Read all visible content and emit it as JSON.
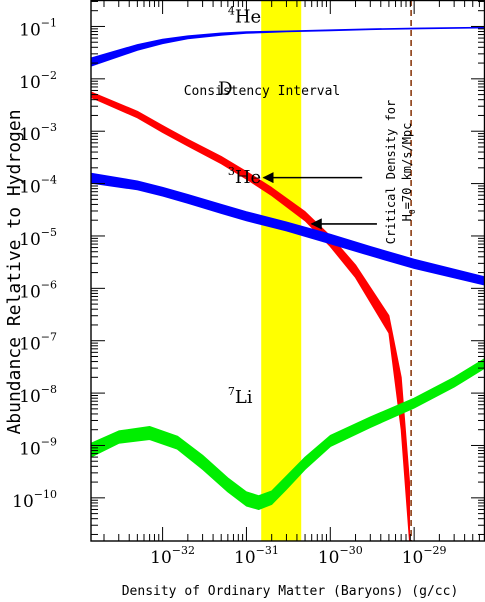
{
  "chart_data": {
    "type": "line",
    "xlabel": "Density of Ordinary Matter (Baryons) (g/cc)",
    "ylabel": "Abundance Relative to Hydrogen",
    "x_scale": "log",
    "y_scale": "log",
    "xlim": [
      1.4e-33,
      7e-29
    ],
    "ylim": [
      1.5e-11,
      0.32
    ],
    "x_ticks": [
      {
        "value": 1e-32,
        "base": "10",
        "exp": "−32"
      },
      {
        "value": 1e-31,
        "base": "10",
        "exp": "−31"
      },
      {
        "value": 1e-30,
        "base": "10",
        "exp": "−30"
      },
      {
        "value": 1e-29,
        "base": "10",
        "exp": "−29"
      }
    ],
    "y_ticks": [
      {
        "value": 1e-10,
        "base": "10",
        "exp": "−10"
      },
      {
        "value": 1e-09,
        "base": "10",
        "exp": "−9"
      },
      {
        "value": 1e-08,
        "base": "10",
        "exp": "−8"
      },
      {
        "value": 1e-07,
        "base": "10",
        "exp": "−7"
      },
      {
        "value": 1e-06,
        "base": "10",
        "exp": "−6"
      },
      {
        "value": 1e-05,
        "base": "10",
        "exp": "−5"
      },
      {
        "value": 0.0001,
        "base": "10",
        "exp": "−4"
      },
      {
        "value": 0.001,
        "base": "10",
        "exp": "−3"
      },
      {
        "value": 0.01,
        "base": "10",
        "exp": "−2"
      },
      {
        "value": 0.1,
        "base": "10",
        "exp": "−1"
      }
    ],
    "grid": false,
    "consistency_interval": {
      "label": "Consistency Interval",
      "x_range": [
        1.5e-31,
        4.5e-31
      ],
      "color": "#ffff00"
    },
    "critical_density": {
      "label_line1": "Critical Density for",
      "label_line2_base": "H",
      "label_line2_sub": "0",
      "label_line2_rest": "=70 km/s/Mpc",
      "x": 9.2e-30,
      "color": "#8b3a10"
    },
    "series": [
      {
        "name": "He",
        "mass_number": "4",
        "color": "#0000ff",
        "band": [
          {
            "x": 1.4e-33,
            "lo": 0.0175,
            "hi": 0.025
          },
          {
            "x": 5e-33,
            "lo": 0.035,
            "hi": 0.045
          },
          {
            "x": 1e-32,
            "lo": 0.047,
            "hi": 0.057
          },
          {
            "x": 2e-32,
            "lo": 0.058,
            "hi": 0.066
          },
          {
            "x": 5e-32,
            "lo": 0.068,
            "hi": 0.075
          },
          {
            "x": 1e-31,
            "lo": 0.074,
            "hi": 0.079
          },
          {
            "x": 3e-31,
            "lo": 0.079,
            "hi": 0.082
          },
          {
            "x": 1e-30,
            "lo": 0.083,
            "hi": 0.086
          },
          {
            "x": 3e-30,
            "lo": 0.087,
            "hi": 0.09
          },
          {
            "x": 1e-29,
            "lo": 0.09,
            "hi": 0.093
          },
          {
            "x": 7e-29,
            "lo": 0.094,
            "hi": 0.097
          }
        ]
      },
      {
        "name": "D",
        "mass_number": "",
        "color": "#ff0000",
        "band": [
          {
            "x": 1.4e-33,
            "lo": 0.0044,
            "hi": 0.0056
          },
          {
            "x": 5e-33,
            "lo": 0.0018,
            "hi": 0.0024
          },
          {
            "x": 1e-32,
            "lo": 0.00095,
            "hi": 0.00128
          },
          {
            "x": 2e-32,
            "lo": 0.00052,
            "hi": 0.0007
          },
          {
            "x": 5e-32,
            "lo": 0.00024,
            "hi": 0.00033
          },
          {
            "x": 1e-31,
            "lo": 0.000122,
            "hi": 0.00017
          },
          {
            "x": 2e-31,
            "lo": 5.9e-05,
            "hi": 8.4e-05
          },
          {
            "x": 5e-31,
            "lo": 1.95e-05,
            "hi": 2.9e-05
          },
          {
            "x": 1e-30,
            "lo": 6.3e-06,
            "hi": 1e-05
          },
          {
            "x": 2e-30,
            "lo": 1.6e-06,
            "hi": 2.8e-06
          },
          {
            "x": 5e-30,
            "lo": 1.4e-07,
            "hi": 3e-07
          },
          {
            "x": 7e-30,
            "lo": 2e-09,
            "hi": 2e-08
          },
          {
            "x": 8.8e-30,
            "lo": 1.5e-11,
            "hi": 2e-10
          }
        ]
      },
      {
        "name": "He",
        "mass_number": "3",
        "color": "#0000ff",
        "band": [
          {
            "x": 1.4e-33,
            "lo": 0.000102,
            "hi": 0.000158
          },
          {
            "x": 5e-33,
            "lo": 7.6e-05,
            "hi": 0.000112
          },
          {
            "x": 1e-32,
            "lo": 5.8e-05,
            "hi": 8.5e-05
          },
          {
            "x": 2e-32,
            "lo": 4.2e-05,
            "hi": 6.2e-05
          },
          {
            "x": 5e-32,
            "lo": 2.7e-05,
            "hi": 4e-05
          },
          {
            "x": 1e-31,
            "lo": 1.95e-05,
            "hi": 2.9e-05
          },
          {
            "x": 3e-31,
            "lo": 1.25e-05,
            "hi": 1.85e-05
          },
          {
            "x": 1e-30,
            "lo": 7.1e-06,
            "hi": 1.08e-05
          },
          {
            "x": 3e-30,
            "lo": 4.2e-06,
            "hi": 6.3e-06
          },
          {
            "x": 1e-29,
            "lo": 2.4e-06,
            "hi": 3.6e-06
          },
          {
            "x": 7e-29,
            "lo": 1.15e-06,
            "hi": 1.65e-06
          }
        ]
      },
      {
        "name": "Li",
        "mass_number": "7",
        "color": "#00ee00",
        "band": [
          {
            "x": 1.4e-33,
            "lo": 6e-10,
            "hi": 1.1e-09
          },
          {
            "x": 3e-33,
            "lo": 1.1e-09,
            "hi": 1.9e-09
          },
          {
            "x": 7e-33,
            "lo": 1.3e-09,
            "hi": 2.3e-09
          },
          {
            "x": 1.5e-32,
            "lo": 8.5e-10,
            "hi": 1.5e-09
          },
          {
            "x": 3e-32,
            "lo": 3.5e-10,
            "hi": 6.5e-10
          },
          {
            "x": 6e-32,
            "lo": 1.3e-10,
            "hi": 2.4e-10
          },
          {
            "x": 1e-31,
            "lo": 7e-11,
            "hi": 1.3e-10
          },
          {
            "x": 1.4e-31,
            "lo": 6e-11,
            "hi": 1.1e-10
          },
          {
            "x": 2e-31,
            "lo": 7.5e-11,
            "hi": 1.35e-10
          },
          {
            "x": 3e-31,
            "lo": 1.45e-10,
            "hi": 2.6e-10
          },
          {
            "x": 5e-31,
            "lo": 3.5e-10,
            "hi": 6e-10
          },
          {
            "x": 1e-30,
            "lo": 9.5e-10,
            "hi": 1.55e-09
          },
          {
            "x": 3e-30,
            "lo": 2.2e-09,
            "hi": 3.5e-09
          },
          {
            "x": 1e-29,
            "lo": 5.2e-09,
            "hi": 8e-09
          },
          {
            "x": 3e-29,
            "lo": 1.3e-08,
            "hi": 2e-08
          },
          {
            "x": 7e-29,
            "lo": 3e-08,
            "hi": 4.6e-08
          }
        ]
      }
    ],
    "series_labels": [
      {
        "series": 0,
        "x": 6e-32,
        "y": 0.12
      },
      {
        "series": 1,
        "x": 4.6e-32,
        "y": 0.005
      },
      {
        "series": 2,
        "x": 6e-32,
        "y": 0.000103
      },
      {
        "series": 3,
        "x": 6e-32,
        "y": 6.5e-09
      }
    ],
    "annotations": [
      {
        "type": "arrow",
        "from": [
          2.4e-30,
          0.00013
        ],
        "to": [
          1.6e-31,
          0.00013
        ],
        "color": "#000000"
      },
      {
        "type": "arrow",
        "from": [
          3.6e-30,
          1.7e-05
        ],
        "to": [
          6e-31,
          1.7e-05
        ],
        "color": "#000000"
      }
    ]
  }
}
